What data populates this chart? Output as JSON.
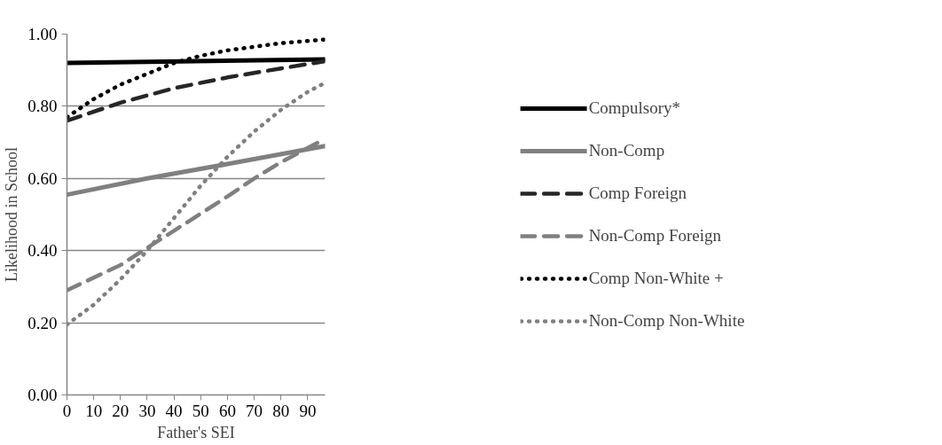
{
  "chart_data": {
    "type": "line",
    "xlabel": "Father's SEI",
    "ylabel": "Likelihood in School",
    "xlim": [
      0,
      96.5
    ],
    "ylim": [
      0,
      1
    ],
    "xticks": [
      0,
      10,
      20,
      30,
      40,
      50,
      60,
      70,
      80,
      90
    ],
    "yticks": [
      {
        "value": 0,
        "label": "0.00"
      },
      {
        "value": 0.2,
        "label": "0.20"
      },
      {
        "value": 0.4,
        "label": "0.40"
      },
      {
        "value": 0.6,
        "label": "0.60"
      },
      {
        "value": 0.8,
        "label": "0.80"
      },
      {
        "value": 1,
        "label": "1.00"
      }
    ],
    "grid": "y",
    "legend": "right",
    "marker": "none",
    "series": [
      {
        "name": "Compulsory*",
        "color": "#000000",
        "line_style": "solid",
        "x": [
          0,
          96.5
        ],
        "values": [
          0.92,
          0.93
        ]
      },
      {
        "name": "Non-Comp",
        "color": "#808080",
        "line_style": "solid",
        "x": [
          0,
          30,
          60,
          96.5
        ],
        "values": [
          0.555,
          0.6,
          0.64,
          0.69
        ]
      },
      {
        "name": "Comp Foreign",
        "color": "#262626",
        "line_style": "dashed",
        "x": [
          0,
          20,
          40,
          60,
          80,
          96.5
        ],
        "values": [
          0.76,
          0.81,
          0.85,
          0.88,
          0.905,
          0.925
        ]
      },
      {
        "name": "Non-Comp Foreign",
        "color": "#808080",
        "line_style": "dashed",
        "x": [
          0,
          20,
          40,
          60,
          70,
          80,
          96.5
        ],
        "values": [
          0.29,
          0.36,
          0.455,
          0.55,
          0.6,
          0.645,
          0.71
        ]
      },
      {
        "name": "Comp Non-White +",
        "color": "#000000",
        "line_style": "dotted",
        "x": [
          0,
          10,
          20,
          30,
          40,
          50,
          60,
          70,
          80,
          96.5
        ],
        "values": [
          0.77,
          0.82,
          0.86,
          0.89,
          0.92,
          0.94,
          0.955,
          0.965,
          0.975,
          0.985
        ]
      },
      {
        "name": "Non-Comp Non-White",
        "color": "#808080",
        "line_style": "dotted",
        "x": [
          0,
          10,
          20,
          30,
          40,
          50,
          60,
          70,
          80,
          90,
          96.5
        ],
        "values": [
          0.195,
          0.25,
          0.32,
          0.4,
          0.49,
          0.58,
          0.66,
          0.73,
          0.79,
          0.84,
          0.865
        ]
      }
    ]
  }
}
